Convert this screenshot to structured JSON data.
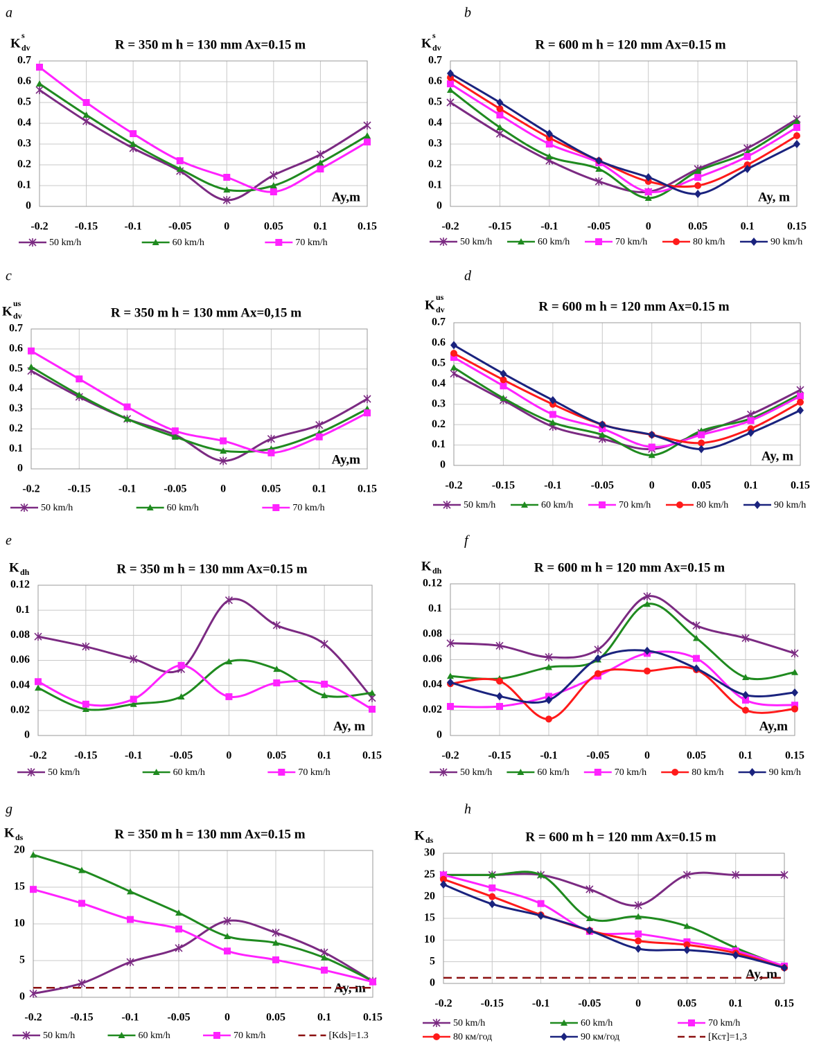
{
  "chart_data": [
    {
      "type": "line",
      "panel_label": "a",
      "title": "R = 350 m  h = 130 mm  Ax=0.15 m",
      "ylabel": "K",
      "ylabel_sup": "s",
      "ylabel_sub": "dv",
      "xlabel": "Ay,m",
      "x": [
        -0.2,
        -0.15,
        -0.1,
        -0.05,
        0,
        0.05,
        0.1,
        0.15
      ],
      "xlim": [
        -0.2,
        0.15
      ],
      "xticks": [
        -0.2,
        -0.15,
        -0.1,
        -0.05,
        0,
        0.05,
        0.1,
        0.15
      ],
      "ylim": [
        0,
        0.7
      ],
      "yticks": [
        0,
        0.1,
        0.2,
        0.3,
        0.4,
        0.5,
        0.6,
        0.7
      ],
      "grid": true,
      "series": [
        {
          "name": "50 km/h",
          "color": "#7b2a82",
          "marker": "star",
          "values": [
            0.56,
            0.41,
            0.28,
            0.17,
            0.03,
            0.15,
            0.25,
            0.39
          ]
        },
        {
          "name": "60 km/h",
          "color": "#1f8a1f",
          "marker": "triangle",
          "values": [
            0.59,
            0.44,
            0.3,
            0.18,
            0.08,
            0.1,
            0.21,
            0.34
          ]
        },
        {
          "name": "70 km/h",
          "color": "#ff22ff",
          "marker": "square",
          "values": [
            0.67,
            0.5,
            0.35,
            0.22,
            0.14,
            0.07,
            0.18,
            0.31
          ]
        }
      ]
    },
    {
      "type": "line",
      "panel_label": "b",
      "title": "R = 600 m  h = 120 mm  Ax=0.15 m",
      "ylabel": "K",
      "ylabel_sup": "s",
      "ylabel_sub": "dv",
      "xlabel": "Ay, m",
      "x": [
        -0.2,
        -0.15,
        -0.1,
        -0.05,
        0,
        0.05,
        0.1,
        0.15
      ],
      "xlim": [
        -0.2,
        0.15
      ],
      "xticks": [
        -0.2,
        -0.15,
        -0.1,
        -0.05,
        0,
        0.05,
        0.1,
        0.15
      ],
      "ylim": [
        0,
        0.7
      ],
      "yticks": [
        0,
        0.1,
        0.2,
        0.3,
        0.4,
        0.5,
        0.6,
        0.7
      ],
      "grid": true,
      "series": [
        {
          "name": "50 km/h",
          "color": "#7b2a82",
          "marker": "star",
          "values": [
            0.5,
            0.35,
            0.22,
            0.12,
            0.07,
            0.18,
            0.28,
            0.42
          ]
        },
        {
          "name": "60 km/h",
          "color": "#1f8a1f",
          "marker": "triangle",
          "values": [
            0.56,
            0.38,
            0.24,
            0.18,
            0.04,
            0.17,
            0.26,
            0.41
          ]
        },
        {
          "name": "70 km/h",
          "color": "#ff22ff",
          "marker": "square",
          "values": [
            0.59,
            0.44,
            0.3,
            0.21,
            0.07,
            0.14,
            0.24,
            0.38
          ]
        },
        {
          "name": "80 km/h",
          "color": "#ff1a1a",
          "marker": "circle",
          "values": [
            0.62,
            0.47,
            0.33,
            0.22,
            0.12,
            0.1,
            0.2,
            0.34
          ]
        },
        {
          "name": "90 km/h",
          "color": "#1a237e",
          "marker": "diamond",
          "values": [
            0.64,
            0.5,
            0.35,
            0.22,
            0.14,
            0.06,
            0.18,
            0.3
          ]
        }
      ]
    },
    {
      "type": "line",
      "panel_label": "c",
      "title": "R = 350 m  h = 130 mm Ax=0,15 m",
      "ylabel": "K",
      "ylabel_sup": "us",
      "ylabel_sub": "dv",
      "xlabel": "Ay,m",
      "x": [
        -0.2,
        -0.15,
        -0.1,
        -0.05,
        0,
        0.05,
        0.1,
        0.15
      ],
      "xlim": [
        -0.2,
        0.15
      ],
      "xticks": [
        -0.2,
        -0.15,
        -0.1,
        -0.05,
        0,
        0.05,
        0.1,
        0.15
      ],
      "ylim": [
        0,
        0.7
      ],
      "yticks": [
        0,
        0.1,
        0.2,
        0.3,
        0.4,
        0.5,
        0.6,
        0.7
      ],
      "grid": true,
      "series": [
        {
          "name": "50 km/h",
          "color": "#7b2a82",
          "marker": "star",
          "values": [
            0.49,
            0.36,
            0.25,
            0.17,
            0.04,
            0.15,
            0.22,
            0.35
          ]
        },
        {
          "name": "60 km/h",
          "color": "#1f8a1f",
          "marker": "triangle",
          "values": [
            0.51,
            0.37,
            0.25,
            0.16,
            0.09,
            0.1,
            0.18,
            0.3
          ]
        },
        {
          "name": "70 km/h",
          "color": "#ff22ff",
          "marker": "square",
          "values": [
            0.59,
            0.45,
            0.31,
            0.19,
            0.14,
            0.08,
            0.16,
            0.28
          ]
        }
      ]
    },
    {
      "type": "line",
      "panel_label": "d",
      "title": "R = 600 m  h = 120 mm  Ax=0.15 m",
      "ylabel": "K",
      "ylabel_sup": "us",
      "ylabel_sub": "dv",
      "xlabel": "Ay, m",
      "x": [
        -0.2,
        -0.15,
        -0.1,
        -0.05,
        0,
        0.05,
        0.1,
        0.15
      ],
      "xlim": [
        -0.2,
        0.15
      ],
      "xticks": [
        -0.2,
        -0.15,
        -0.1,
        -0.05,
        0,
        0.05,
        0.1,
        0.15
      ],
      "ylim": [
        0,
        0.7
      ],
      "yticks": [
        0,
        0.1,
        0.2,
        0.3,
        0.4,
        0.5,
        0.6,
        0.7
      ],
      "grid": true,
      "series": [
        {
          "name": "50 km/h",
          "color": "#7b2a82",
          "marker": "star",
          "values": [
            0.45,
            0.32,
            0.19,
            0.13,
            0.08,
            0.16,
            0.25,
            0.37
          ]
        },
        {
          "name": "60 km/h",
          "color": "#1f8a1f",
          "marker": "triangle",
          "values": [
            0.48,
            0.33,
            0.21,
            0.15,
            0.05,
            0.17,
            0.23,
            0.35
          ]
        },
        {
          "name": "70 km/h",
          "color": "#ff22ff",
          "marker": "square",
          "values": [
            0.53,
            0.39,
            0.25,
            0.18,
            0.09,
            0.15,
            0.22,
            0.34
          ]
        },
        {
          "name": "80 km/h",
          "color": "#ff1a1a",
          "marker": "circle",
          "values": [
            0.55,
            0.42,
            0.3,
            0.2,
            0.15,
            0.11,
            0.18,
            0.31
          ]
        },
        {
          "name": "90 km/h",
          "color": "#1a237e",
          "marker": "diamond",
          "values": [
            0.59,
            0.45,
            0.32,
            0.2,
            0.15,
            0.08,
            0.16,
            0.27
          ]
        }
      ]
    },
    {
      "type": "line",
      "panel_label": "e",
      "title": "R = 350 m  h = 130 mm  Ax=0.15 m",
      "ylabel": "K",
      "ylabel_sub": "dh",
      "xlabel": "Ay, m",
      "x": [
        -0.2,
        -0.15,
        -0.1,
        -0.05,
        0,
        0.05,
        0.1,
        0.15
      ],
      "xlim": [
        -0.2,
        0.15
      ],
      "xticks": [
        -0.2,
        -0.15,
        -0.1,
        -0.05,
        0,
        0.05,
        0.1,
        0.15
      ],
      "ylim": [
        0,
        0.12
      ],
      "yticks": [
        0,
        0.02,
        0.04,
        0.06,
        0.08,
        0.1,
        0.12
      ],
      "grid": true,
      "series": [
        {
          "name": "50 km/h",
          "color": "#7b2a82",
          "marker": "star",
          "values": [
            0.079,
            0.071,
            0.061,
            0.053,
            0.108,
            0.088,
            0.073,
            0.03
          ]
        },
        {
          "name": "60 km/h",
          "color": "#1f8a1f",
          "marker": "triangle",
          "values": [
            0.038,
            0.021,
            0.025,
            0.031,
            0.059,
            0.053,
            0.032,
            0.034
          ]
        },
        {
          "name": "70 km/h",
          "color": "#ff22ff",
          "marker": "square",
          "values": [
            0.043,
            0.025,
            0.029,
            0.056,
            0.031,
            0.042,
            0.041,
            0.021
          ]
        }
      ]
    },
    {
      "type": "line",
      "panel_label": "f",
      "title": "R = 600 m  h = 120 mm  Ax=0.15 m",
      "ylabel": "K",
      "ylabel_sub": "dh",
      "xlabel": "Ay,m",
      "x": [
        -0.2,
        -0.15,
        -0.1,
        -0.05,
        0,
        0.05,
        0.1,
        0.15
      ],
      "xlim": [
        -0.2,
        0.15
      ],
      "xticks": [
        -0.2,
        -0.15,
        -0.1,
        -0.05,
        0,
        0.05,
        0.1,
        0.15
      ],
      "ylim": [
        0,
        0.12
      ],
      "yticks": [
        0,
        0.02,
        0.04,
        0.06,
        0.08,
        0.1,
        0.12
      ],
      "grid": true,
      "series": [
        {
          "name": "50 km/h",
          "color": "#7b2a82",
          "marker": "star",
          "values": [
            0.073,
            0.071,
            0.062,
            0.068,
            0.11,
            0.087,
            0.077,
            0.065
          ]
        },
        {
          "name": "60 km/h",
          "color": "#1f8a1f",
          "marker": "triangle",
          "values": [
            0.047,
            0.045,
            0.054,
            0.06,
            0.104,
            0.077,
            0.046,
            0.05
          ]
        },
        {
          "name": "70 km/h",
          "color": "#ff22ff",
          "marker": "square",
          "values": [
            0.023,
            0.023,
            0.031,
            0.047,
            0.065,
            0.061,
            0.028,
            0.024
          ]
        },
        {
          "name": "80 km/h",
          "color": "#ff1a1a",
          "marker": "circle",
          "values": [
            0.041,
            0.043,
            0.013,
            0.049,
            0.051,
            0.052,
            0.02,
            0.021
          ]
        },
        {
          "name": "90 km/h",
          "color": "#1a237e",
          "marker": "diamond",
          "values": [
            0.042,
            0.031,
            0.028,
            0.061,
            0.067,
            0.053,
            0.032,
            0.034
          ]
        }
      ]
    },
    {
      "type": "line",
      "panel_label": "g",
      "title": "R = 350 m  h = 130 mm  Ax=0.15 m",
      "ylabel": "K",
      "ylabel_sub": "ds",
      "xlabel": "Ay, m",
      "x": [
        -0.2,
        -0.15,
        -0.1,
        -0.05,
        0,
        0.05,
        0.1,
        0.15
      ],
      "xlim": [
        -0.2,
        0.15
      ],
      "xticks": [
        -0.2,
        -0.15,
        -0.1,
        -0.05,
        0,
        0.05,
        0.1,
        0.15
      ],
      "ylim": [
        0,
        20
      ],
      "yticks": [
        0,
        5,
        10,
        15,
        20
      ],
      "grid": true,
      "series": [
        {
          "name": "50 km/h",
          "color": "#7b2a82",
          "marker": "star",
          "values": [
            0.5,
            1.9,
            4.8,
            6.7,
            10.4,
            8.8,
            6.1,
            2.2
          ]
        },
        {
          "name": "60 km/h",
          "color": "#1f8a1f",
          "marker": "triangle",
          "values": [
            19.4,
            17.3,
            14.4,
            11.5,
            8.3,
            7.4,
            5.4,
            2.2
          ]
        },
        {
          "name": "70 km/h",
          "color": "#ff22ff",
          "marker": "square",
          "values": [
            14.7,
            12.8,
            10.6,
            9.3,
            6.3,
            5.1,
            3.7,
            2.1
          ]
        }
      ],
      "ref_line": {
        "name": "[Kds]=1.3",
        "value": 1.3,
        "color": "#8b1010"
      }
    },
    {
      "type": "line",
      "panel_label": "h",
      "title": "R = 600 m  h = 120 mm  Ax=0.15 m",
      "ylabel": "K",
      "ylabel_sub": "ds",
      "xlabel": "Ay, m",
      "x": [
        -0.2,
        -0.15,
        -0.1,
        -0.05,
        0,
        0.05,
        0.1,
        0.15
      ],
      "xlim": [
        -0.2,
        0.15
      ],
      "xticks": [
        -0.2,
        -0.15,
        -0.1,
        -0.05,
        0,
        0.05,
        0.1,
        0.15
      ],
      "ylim": [
        0,
        30
      ],
      "yticks": [
        0,
        5,
        10,
        15,
        20,
        25,
        30
      ],
      "grid": true,
      "series": [
        {
          "name": "50 km/h",
          "color": "#7b2a82",
          "marker": "star",
          "values": [
            25,
            25,
            25,
            21.7,
            18,
            25,
            25,
            25
          ]
        },
        {
          "name": "60 km/h",
          "color": "#1f8a1f",
          "marker": "triangle",
          "values": [
            25,
            25,
            25,
            15,
            15.4,
            13.2,
            8.2,
            3.8
          ]
        },
        {
          "name": "70 km/h",
          "color": "#ff22ff",
          "marker": "square",
          "values": [
            25,
            22,
            18.4,
            12,
            11.4,
            9.6,
            7.5,
            4
          ]
        },
        {
          "name": "80 км/год",
          "color": "#ff1a1a",
          "marker": "circle",
          "values": [
            24,
            20,
            15.8,
            12.2,
            9.8,
            8.9,
            7,
            3.6
          ]
        },
        {
          "name": "90 км/год",
          "color": "#1a237e",
          "marker": "diamond",
          "values": [
            22.8,
            18.3,
            15.6,
            12.2,
            8,
            7.7,
            6.5,
            3.6
          ]
        }
      ],
      "ref_line": {
        "name": "[Кст]=1,3",
        "value": 1.3,
        "color": "#8b1010"
      }
    }
  ]
}
